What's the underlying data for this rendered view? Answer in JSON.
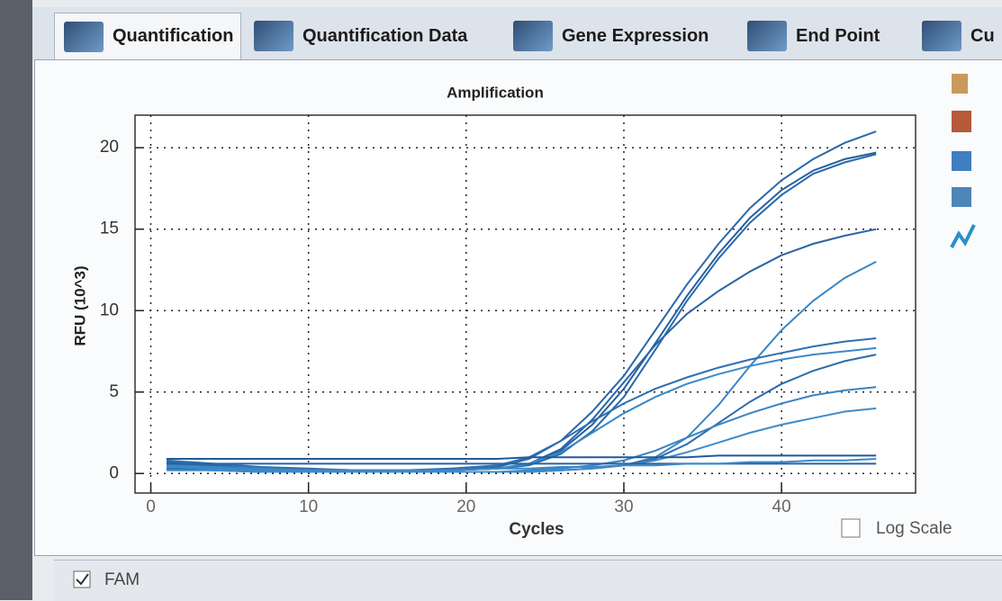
{
  "tabs": [
    "Quantification",
    "Quantification Data",
    "Gene Expression",
    "End Point",
    "Cu"
  ],
  "controls": {
    "log_scale_label": "Log Scale",
    "channel": "FAM",
    "channel_checked": true
  },
  "chart_data": {
    "type": "line",
    "title": "Amplification",
    "x_label": "Cycles",
    "y_label": "RFU (10^3)",
    "x": [
      1,
      4,
      7,
      10,
      13,
      16,
      19,
      22,
      24,
      26,
      28,
      30,
      32,
      34,
      36,
      38,
      40,
      42,
      44,
      46
    ],
    "series": [
      {
        "color": "#2c68a8",
        "values": [
          0.3,
          0.2,
          0.1,
          0.1,
          0.1,
          0.1,
          0.2,
          0.4,
          0.9,
          2.0,
          3.8,
          6.0,
          8.8,
          11.6,
          14.1,
          16.3,
          18.0,
          19.3,
          20.3,
          21.0
        ]
      },
      {
        "color": "#24609f",
        "values": [
          0.5,
          0.3,
          0.2,
          0.1,
          0.1,
          0.1,
          0.2,
          0.3,
          0.6,
          1.4,
          3.0,
          5.2,
          8.0,
          10.9,
          13.5,
          15.7,
          17.4,
          18.6,
          19.3,
          19.7
        ]
      },
      {
        "color": "#2a6aac",
        "values": [
          0.6,
          0.4,
          0.3,
          0.2,
          0.1,
          0.1,
          0.2,
          0.3,
          0.5,
          1.2,
          2.6,
          4.7,
          7.6,
          10.6,
          13.2,
          15.4,
          17.1,
          18.4,
          19.1,
          19.6
        ]
      },
      {
        "color": "#2b65a3",
        "values": [
          0.7,
          0.5,
          0.3,
          0.2,
          0.2,
          0.2,
          0.2,
          0.3,
          0.6,
          1.5,
          3.3,
          5.6,
          7.9,
          9.8,
          11.2,
          12.4,
          13.4,
          14.1,
          14.6,
          15.0
        ]
      },
      {
        "color": "#3a86c4",
        "values": [
          0.4,
          0.3,
          0.2,
          0.1,
          0.1,
          0.1,
          0.1,
          0.1,
          0.1,
          0.2,
          0.3,
          0.5,
          1.0,
          2.2,
          4.2,
          6.6,
          8.8,
          10.6,
          12.0,
          13.0
        ]
      },
      {
        "color": "#2f6fb0",
        "values": [
          0.8,
          0.6,
          0.4,
          0.3,
          0.2,
          0.2,
          0.3,
          0.5,
          1.0,
          2.0,
          3.2,
          4.3,
          5.2,
          5.9,
          6.5,
          7.0,
          7.4,
          7.8,
          8.1,
          8.3
        ]
      },
      {
        "color": "#3b88c8",
        "values": [
          0.5,
          0.4,
          0.3,
          0.2,
          0.2,
          0.2,
          0.2,
          0.3,
          0.6,
          1.3,
          2.5,
          3.7,
          4.7,
          5.5,
          6.1,
          6.6,
          7.0,
          7.3,
          7.5,
          7.7
        ]
      },
      {
        "color": "#2d6cad",
        "values": [
          0.3,
          0.2,
          0.1,
          0.1,
          0.1,
          0.1,
          0.1,
          0.1,
          0.1,
          0.2,
          0.3,
          0.5,
          0.9,
          1.8,
          3.1,
          4.4,
          5.5,
          6.3,
          6.9,
          7.3
        ]
      },
      {
        "color": "#3a84c2",
        "values": [
          0.4,
          0.3,
          0.2,
          0.1,
          0.1,
          0.1,
          0.1,
          0.1,
          0.2,
          0.3,
          0.5,
          0.8,
          1.4,
          2.2,
          3.0,
          3.7,
          4.3,
          4.8,
          5.1,
          5.3
        ]
      },
      {
        "color": "#3f8ccb",
        "values": [
          0.2,
          0.2,
          0.1,
          0.1,
          0.1,
          0.1,
          0.1,
          0.1,
          0.1,
          0.2,
          0.3,
          0.5,
          0.8,
          1.3,
          1.9,
          2.5,
          3.0,
          3.4,
          3.8,
          4.0
        ]
      },
      {
        "color": "#1f5a9a",
        "values": [
          0.9,
          0.9,
          0.9,
          0.9,
          0.9,
          0.9,
          0.9,
          0.9,
          1.0,
          1.0,
          1.0,
          1.0,
          1.0,
          1.0,
          1.1,
          1.1,
          1.1,
          1.1,
          1.1,
          1.1
        ]
      },
      {
        "color": "#2663a4",
        "values": [
          0.6,
          0.6,
          0.6,
          0.6,
          0.6,
          0.6,
          0.6,
          0.6,
          0.6,
          0.6,
          0.6,
          0.6,
          0.6,
          0.6,
          0.6,
          0.6,
          0.6,
          0.6,
          0.6,
          0.6
        ]
      },
      {
        "color": "#3d88c6",
        "values": [
          0.4,
          0.3,
          0.2,
          0.2,
          0.2,
          0.2,
          0.2,
          0.3,
          0.3,
          0.4,
          0.4,
          0.5,
          0.5,
          0.6,
          0.6,
          0.7,
          0.7,
          0.8,
          0.8,
          0.9
        ]
      }
    ],
    "xlim": [
      -1,
      48.5
    ],
    "ylim": [
      -1.2,
      22
    ],
    "xticks": [
      0,
      10,
      20,
      30,
      40
    ],
    "yticks": [
      0,
      5,
      10,
      15,
      20
    ],
    "grid": true,
    "log_scale": false
  }
}
